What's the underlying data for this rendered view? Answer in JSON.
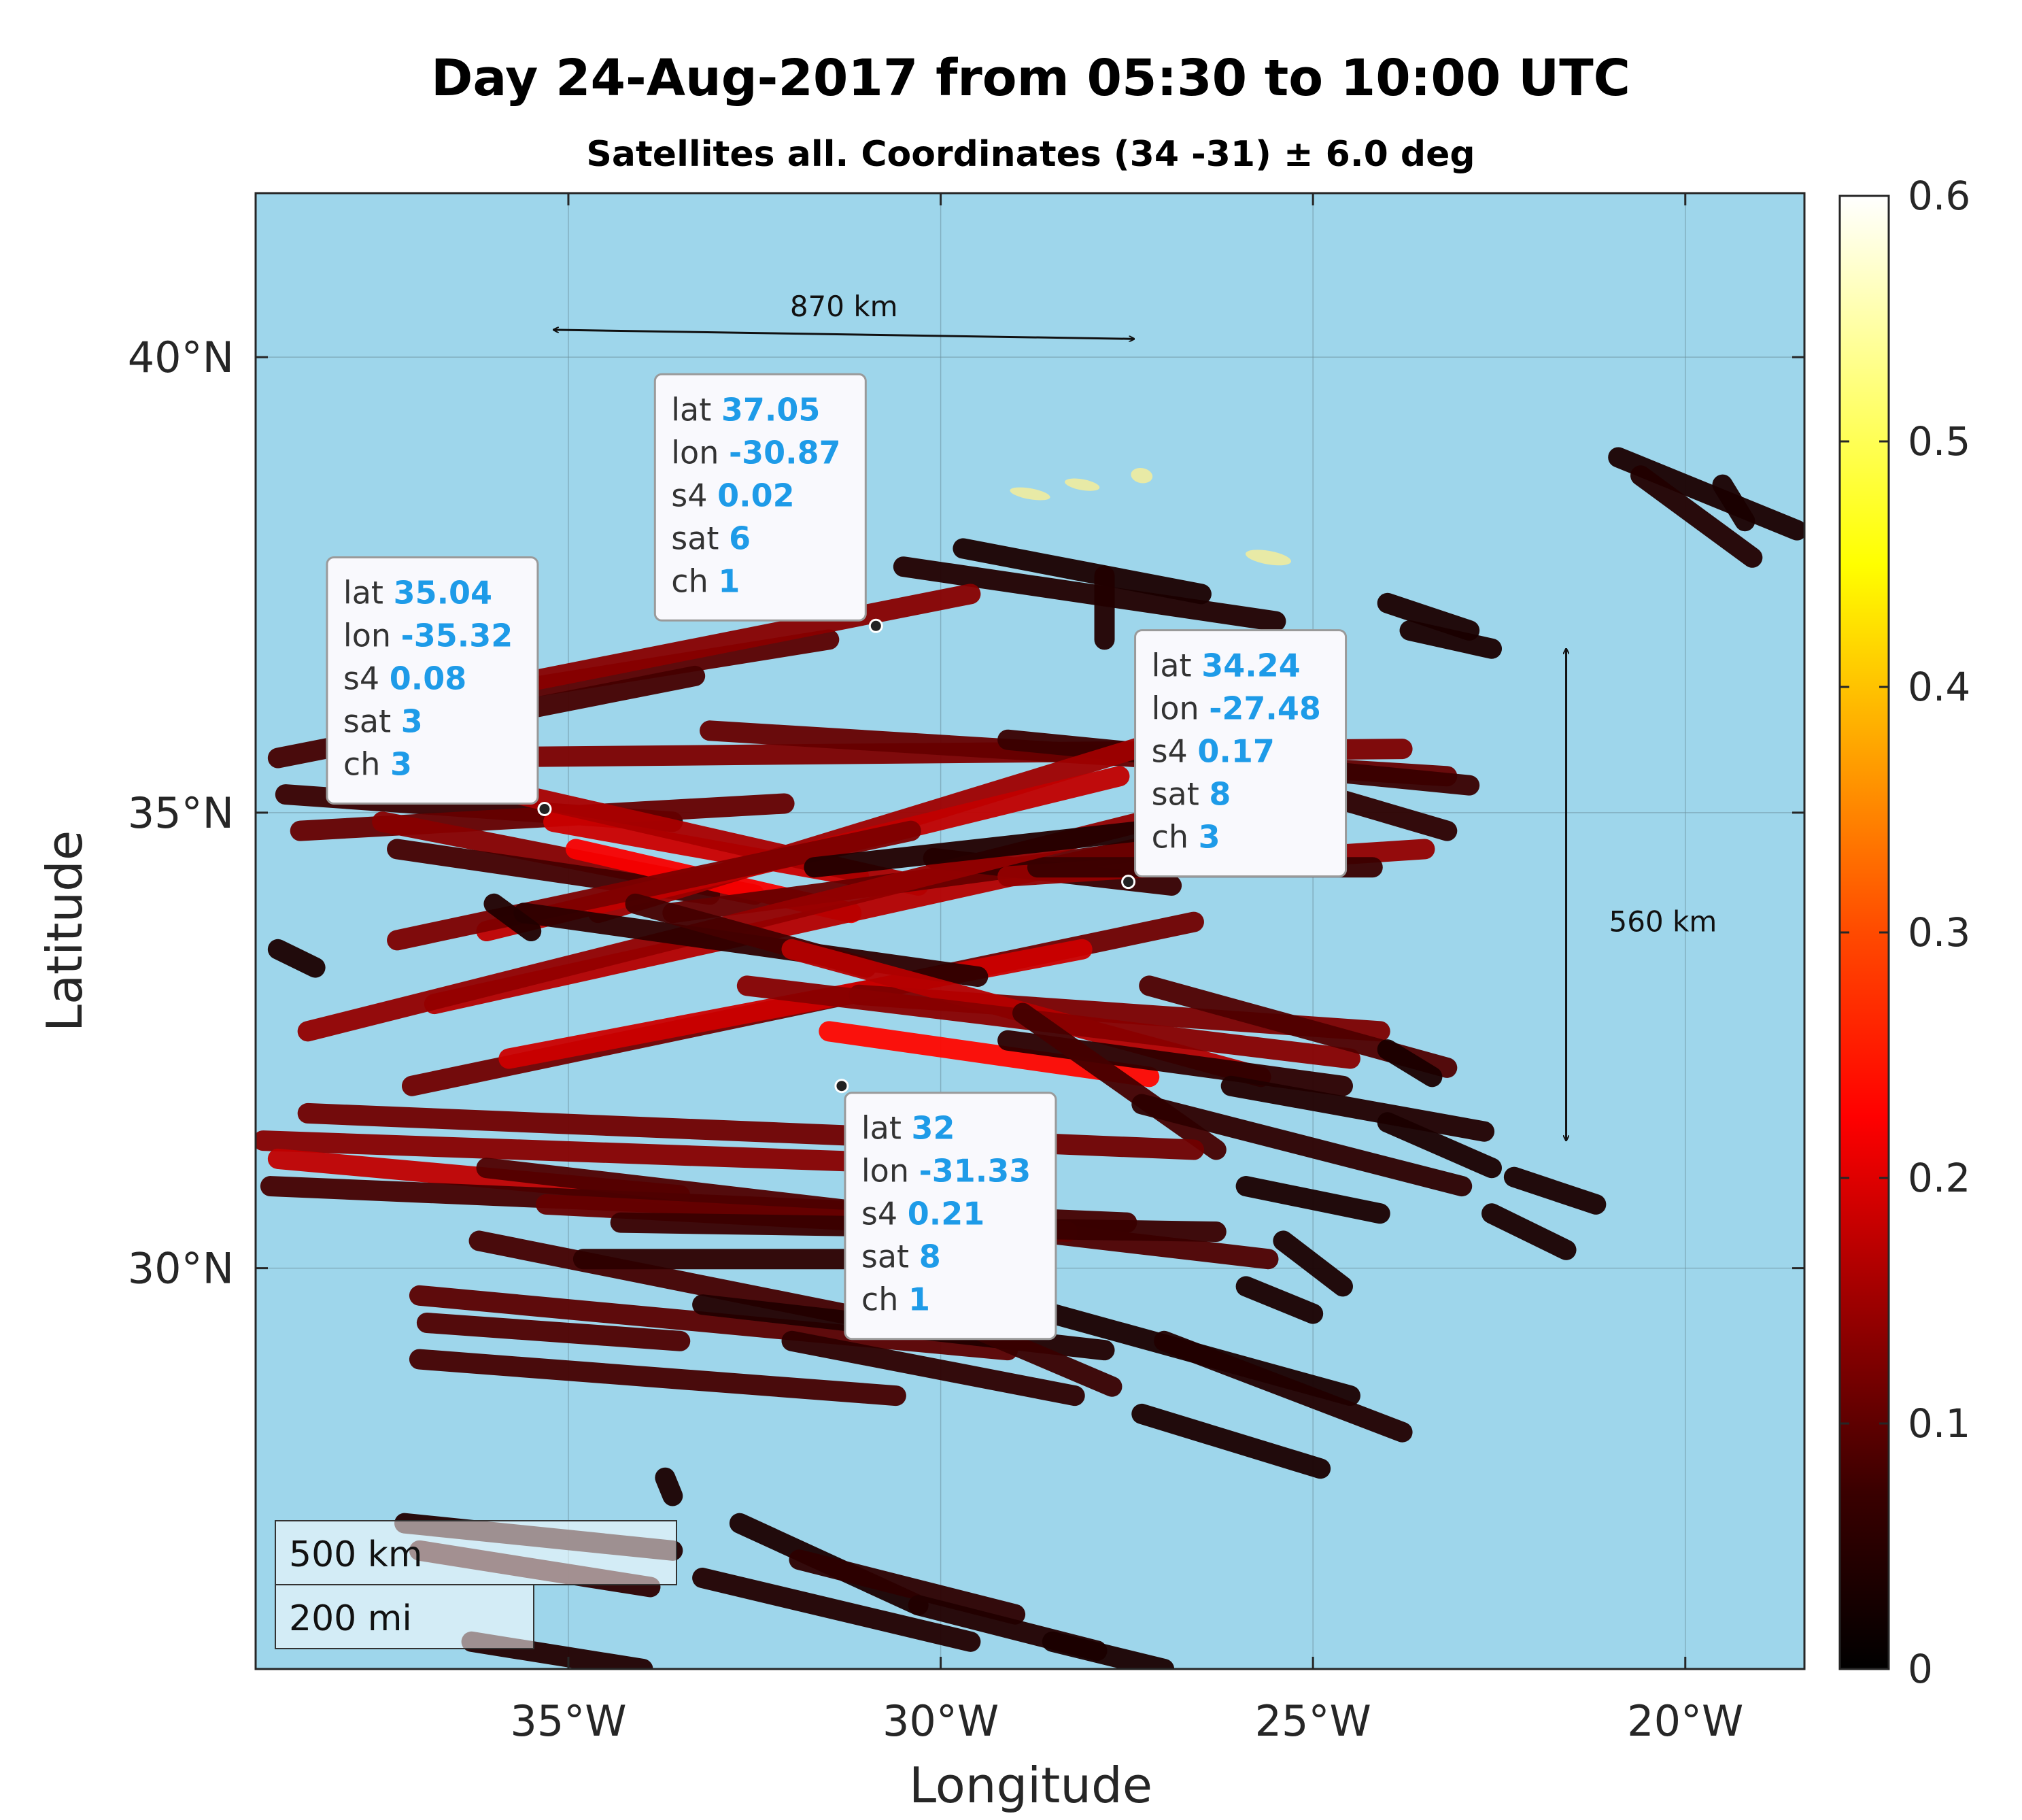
{
  "chart_data": {
    "type": "scatter",
    "title": "Day 24-Aug-2017 from 05:30 to 10:00 UTC",
    "subtitle": "Satellites all. Coordinates (34 -31) ± 6.0 deg",
    "xlabel": "Longitude",
    "ylabel": "Latitude",
    "xlim": [
      -39.2,
      -18.4
    ],
    "ylim": [
      25.6,
      41.8
    ],
    "x_ticks": [
      {
        "value": -35,
        "label": "35°W"
      },
      {
        "value": -30,
        "label": "30°W"
      },
      {
        "value": -25,
        "label": "25°W"
      },
      {
        "value": -20,
        "label": "20°W"
      }
    ],
    "y_ticks": [
      {
        "value": 30,
        "label": "30°N"
      },
      {
        "value": 35,
        "label": "35°N"
      },
      {
        "value": 40,
        "label": "40°N"
      }
    ],
    "grid": true,
    "colorbar": {
      "min": 0,
      "max": 0.6,
      "ticks": [
        {
          "value": 0,
          "label": "0"
        },
        {
          "value": 0.1,
          "label": "0.1"
        },
        {
          "value": 0.2,
          "label": "0.2"
        },
        {
          "value": 0.3,
          "label": "0.3"
        },
        {
          "value": 0.4,
          "label": "0.4"
        },
        {
          "value": 0.5,
          "label": "0.5"
        },
        {
          "value": 0.6,
          "label": "0.6"
        }
      ],
      "colormap": "hot"
    },
    "distance_annotations": [
      {
        "label": "870 km",
        "from": [
          -35.2,
          40.3
        ],
        "to": [
          -27.4,
          40.2
        ]
      },
      {
        "label": "560 km",
        "from": [
          -21.6,
          36.8
        ],
        "to": [
          -21.6,
          31.4
        ],
        "label_at": [
          -20.3,
          33.8
        ]
      }
    ],
    "scale_bar": {
      "km_label": "500 km",
      "mi_label": "200 mi"
    },
    "tracks": [
      {
        "from": [
          -30.5,
          37.7
        ],
        "to": [
          -25.5,
          37.1
        ],
        "s4": 0.03
      },
      {
        "from": [
          -29.7,
          37.9
        ],
        "to": [
          -26.5,
          37.4
        ],
        "s4": 0.02
      },
      {
        "from": [
          -24.0,
          37.3
        ],
        "to": [
          -22.9,
          37.0
        ],
        "s4": 0.02
      },
      {
        "from": [
          -23.7,
          37.0
        ],
        "to": [
          -22.6,
          36.8
        ],
        "s4": 0.02
      },
      {
        "from": [
          -20.9,
          38.9
        ],
        "to": [
          -18.5,
          38.1
        ],
        "s4": 0.02
      },
      {
        "from": [
          -20.6,
          38.7
        ],
        "to": [
          -19.1,
          37.8
        ],
        "s4": 0.03
      },
      {
        "from": [
          -19.5,
          38.6
        ],
        "to": [
          -19.2,
          38.2
        ],
        "s4": 0.02
      },
      {
        "from": [
          -37.6,
          36.1
        ],
        "to": [
          -31.5,
          36.9
        ],
        "s4": 0.08
      },
      {
        "from": [
          -36.4,
          36.3
        ],
        "to": [
          -29.6,
          37.4
        ],
        "s4": 0.12
      },
      {
        "from": [
          -38.9,
          35.6
        ],
        "to": [
          -33.3,
          36.5
        ],
        "s4": 0.06
      },
      {
        "from": [
          -37.3,
          35.6
        ],
        "to": [
          -23.8,
          35.7
        ],
        "s4": 0.11
      },
      {
        "from": [
          -33.1,
          35.9
        ],
        "to": [
          -23.2,
          35.4
        ],
        "s4": 0.09
      },
      {
        "from": [
          -29.1,
          35.8
        ],
        "to": [
          -22.9,
          35.3
        ],
        "s4": 0.05
      },
      {
        "from": [
          -25.7,
          35.4
        ],
        "to": [
          -23.2,
          34.8
        ],
        "s4": 0.04
      },
      {
        "from": [
          -38.8,
          35.2
        ],
        "to": [
          -33.6,
          34.9
        ],
        "s4": 0.05
      },
      {
        "from": [
          -38.6,
          34.8
        ],
        "to": [
          -32.1,
          35.1
        ],
        "s4": 0.09
      },
      {
        "from": [
          -37.5,
          34.9
        ],
        "to": [
          -32.5,
          34.1
        ],
        "s4": 0.12
      },
      {
        "from": [
          -37.3,
          34.6
        ],
        "to": [
          -33.1,
          34.1
        ],
        "s4": 0.06
      },
      {
        "from": [
          -35.2,
          34.9
        ],
        "to": [
          -31.1,
          34.3
        ],
        "s4": 0.18
      },
      {
        "from": [
          -34.9,
          34.6
        ],
        "to": [
          -31.2,
          33.9
        ],
        "s4": 0.22
      },
      {
        "from": [
          -36.2,
          35.3
        ],
        "to": [
          -30.3,
          34.2
        ],
        "s4": 0.15
      },
      {
        "from": [
          -34.6,
          33.9
        ],
        "to": [
          -25.4,
          36.2
        ],
        "s4": 0.14
      },
      {
        "from": [
          -36.1,
          33.7
        ],
        "to": [
          -27.6,
          35.4
        ],
        "s4": 0.17
      },
      {
        "from": [
          -37.3,
          33.6
        ],
        "to": [
          -30.4,
          34.8
        ],
        "s4": 0.11
      },
      {
        "from": [
          -36.8,
          32.9
        ],
        "to": [
          -26.3,
          34.8
        ],
        "s4": 0.16
      },
      {
        "from": [
          -33.6,
          33.9
        ],
        "to": [
          -25.3,
          34.8
        ],
        "s4": 0.09
      },
      {
        "from": [
          -30.1,
          34.5
        ],
        "to": [
          -26.9,
          34.2
        ],
        "s4": 0.05
      },
      {
        "from": [
          -29.1,
          34.3
        ],
        "to": [
          -23.5,
          34.6
        ],
        "s4": 0.13
      },
      {
        "from": [
          -28.7,
          34.4
        ],
        "to": [
          -24.2,
          34.4
        ],
        "s4": 0.05
      },
      {
        "from": [
          -38.5,
          32.6
        ],
        "to": [
          -27.3,
          34.9
        ],
        "s4": 0.13
      },
      {
        "from": [
          -37.1,
          32.0
        ],
        "to": [
          -26.6,
          33.8
        ],
        "s4": 0.1
      },
      {
        "from": [
          -35.8,
          32.3
        ],
        "to": [
          -28.1,
          33.5
        ],
        "s4": 0.18
      },
      {
        "from": [
          -35.6,
          33.9
        ],
        "to": [
          -29.5,
          33.2
        ],
        "s4": 0.04
      },
      {
        "from": [
          -34.1,
          34.0
        ],
        "to": [
          -31.0,
          33.3
        ],
        "s4": 0.06
      },
      {
        "from": [
          -31.7,
          34.4
        ],
        "to": [
          -26.2,
          34.9
        ],
        "s4": 0.03
      },
      {
        "from": [
          -38.9,
          33.5
        ],
        "to": [
          -38.4,
          33.3
        ],
        "s4": 0.02
      },
      {
        "from": [
          -36.0,
          34.0
        ],
        "to": [
          -35.5,
          33.7
        ],
        "s4": 0.03
      },
      {
        "from": [
          -31.1,
          33.0
        ],
        "to": [
          -24.1,
          32.6
        ],
        "s4": 0.11
      },
      {
        "from": [
          -32.0,
          33.5
        ],
        "to": [
          -25.7,
          32.1
        ],
        "s4": 0.16
      },
      {
        "from": [
          -32.6,
          33.1
        ],
        "to": [
          -24.5,
          32.3
        ],
        "s4": 0.12
      },
      {
        "from": [
          -31.5,
          32.6
        ],
        "to": [
          -27.2,
          32.1
        ],
        "s4": 0.23
      },
      {
        "from": [
          -27.2,
          33.1
        ],
        "to": [
          -23.2,
          32.2
        ],
        "s4": 0.07
      },
      {
        "from": [
          -29.1,
          32.5
        ],
        "to": [
          -24.6,
          32.0
        ],
        "s4": 0.04
      },
      {
        "from": [
          -28.9,
          32.8
        ],
        "to": [
          -26.3,
          31.3
        ],
        "s4": 0.06
      },
      {
        "from": [
          -26.1,
          32.0
        ],
        "to": [
          -22.7,
          31.5
        ],
        "s4": 0.03
      },
      {
        "from": [
          -27.3,
          31.8
        ],
        "to": [
          -23.0,
          30.9
        ],
        "s4": 0.04
      },
      {
        "from": [
          -24.0,
          32.4
        ],
        "to": [
          -23.4,
          32.1
        ],
        "s4": 0.02
      },
      {
        "from": [
          -38.5,
          31.7
        ],
        "to": [
          -26.6,
          31.3
        ],
        "s4": 0.1
      },
      {
        "from": [
          -39.1,
          31.4
        ],
        "to": [
          -28.7,
          31.1
        ],
        "s4": 0.12
      },
      {
        "from": [
          -38.9,
          31.2
        ],
        "to": [
          -33.5,
          30.8
        ],
        "s4": 0.17
      },
      {
        "from": [
          -39.0,
          30.9
        ],
        "to": [
          -27.5,
          30.5
        ],
        "s4": 0.06
      },
      {
        "from": [
          -36.1,
          31.1
        ],
        "to": [
          -25.6,
          30.1
        ],
        "s4": 0.07
      },
      {
        "from": [
          -35.3,
          30.7
        ],
        "to": [
          -28.3,
          30.4
        ],
        "s4": 0.09
      },
      {
        "from": [
          -34.3,
          30.5
        ],
        "to": [
          -26.3,
          30.4
        ],
        "s4": 0.05
      },
      {
        "from": [
          -36.2,
          30.3
        ],
        "to": [
          -31.3,
          29.5
        ],
        "s4": 0.06
      },
      {
        "from": [
          -34.8,
          30.1
        ],
        "to": [
          -29.6,
          30.1
        ],
        "s4": 0.04
      },
      {
        "from": [
          -37.0,
          29.7
        ],
        "to": [
          -29.1,
          29.1
        ],
        "s4": 0.08
      },
      {
        "from": [
          -36.9,
          29.4
        ],
        "to": [
          -33.5,
          29.2
        ],
        "s4": 0.07
      },
      {
        "from": [
          -37.0,
          29.0
        ],
        "to": [
          -30.6,
          28.6
        ],
        "s4": 0.06
      },
      {
        "from": [
          -33.2,
          29.6
        ],
        "to": [
          -27.8,
          29.1
        ],
        "s4": 0.03
      },
      {
        "from": [
          -32.0,
          29.2
        ],
        "to": [
          -28.2,
          28.6
        ],
        "s4": 0.04
      },
      {
        "from": [
          -30.0,
          29.5
        ],
        "to": [
          -27.7,
          28.7
        ],
        "s4": 0.05
      },
      {
        "from": [
          -28.5,
          29.5
        ],
        "to": [
          -24.5,
          28.6
        ],
        "s4": 0.02
      },
      {
        "from": [
          -27.0,
          29.2
        ],
        "to": [
          -23.8,
          28.2
        ],
        "s4": 0.03
      },
      {
        "from": [
          -27.3,
          28.4
        ],
        "to": [
          -24.9,
          27.8
        ],
        "s4": 0.02
      },
      {
        "from": [
          -25.4,
          30.3
        ],
        "to": [
          -24.6,
          29.8
        ],
        "s4": 0.02
      },
      {
        "from": [
          -25.9,
          29.8
        ],
        "to": [
          -25.0,
          29.5
        ],
        "s4": 0.02
      },
      {
        "from": [
          -22.3,
          31.0
        ],
        "to": [
          -21.2,
          30.7
        ],
        "s4": 0.02
      },
      {
        "from": [
          -22.6,
          30.6
        ],
        "to": [
          -21.6,
          30.2
        ],
        "s4": 0.02
      },
      {
        "from": [
          -25.9,
          30.9
        ],
        "to": [
          -24.1,
          30.6
        ],
        "s4": 0.02
      },
      {
        "from": [
          -24.0,
          31.6
        ],
        "to": [
          -22.6,
          31.1
        ],
        "s4": 0.02
      },
      {
        "from": [
          -37.2,
          27.2
        ],
        "to": [
          -33.6,
          26.9
        ],
        "s4": 0.03
      },
      {
        "from": [
          -37.0,
          26.9
        ],
        "to": [
          -33.9,
          26.5
        ],
        "s4": 0.04
      },
      {
        "from": [
          -33.2,
          26.6
        ],
        "to": [
          -29.6,
          25.9
        ],
        "s4": 0.03
      },
      {
        "from": [
          -32.7,
          27.2
        ],
        "to": [
          -30.3,
          26.3
        ],
        "s4": 0.02
      },
      {
        "from": [
          -31.9,
          26.8
        ],
        "to": [
          -29.0,
          26.2
        ],
        "s4": 0.04
      },
      {
        "from": [
          -30.3,
          26.3
        ],
        "to": [
          -27.9,
          25.8
        ],
        "s4": 0.03
      },
      {
        "from": [
          -28.5,
          25.9
        ],
        "to": [
          -27.0,
          25.6
        ],
        "s4": 0.02
      },
      {
        "from": [
          -36.3,
          25.9
        ],
        "to": [
          -34.0,
          25.6
        ],
        "s4": 0.03
      },
      {
        "from": [
          -33.7,
          27.7
        ],
        "to": [
          -33.6,
          27.5
        ],
        "s4": 0.02
      },
      {
        "from": [
          -27.8,
          37.6
        ],
        "to": [
          -27.8,
          36.9
        ],
        "s4": 0.03
      }
    ],
    "patches": [
      {
        "center": [
          -28.8,
          38.5
        ],
        "rx": 30,
        "ry": 8,
        "s4": 0.52
      },
      {
        "center": [
          -28.1,
          38.6
        ],
        "rx": 26,
        "ry": 8,
        "s4": 0.52
      },
      {
        "center": [
          -27.3,
          38.7
        ],
        "rx": 16,
        "ry": 11,
        "s4": 0.52
      },
      {
        "center": [
          -25.6,
          37.8
        ],
        "rx": 34,
        "ry": 10,
        "s4": 0.52
      }
    ],
    "datatips": [
      {
        "lat": "37.05",
        "lon": "-30.87",
        "s4": "0.02",
        "sat": "6",
        "ch": "1",
        "point": [
          -30.87,
          37.05
        ],
        "anchor": "top-left-above"
      },
      {
        "lat": "35.04",
        "lon": "-35.32",
        "s4": "0.08",
        "sat": "3",
        "ch": "3",
        "point": [
          -35.32,
          35.04
        ],
        "anchor": "above-left"
      },
      {
        "lat": "34.24",
        "lon": "-27.48",
        "s4": "0.17",
        "sat": "8",
        "ch": "3",
        "point": [
          -27.48,
          34.24
        ],
        "anchor": "above-right"
      },
      {
        "lat": "32",
        "lon": "-31.33",
        "s4": "0.21",
        "sat": "8",
        "ch": "1",
        "point": [
          -31.33,
          32.0
        ],
        "anchor": "below-right"
      }
    ],
    "datatip_keys": {
      "lat": "lat",
      "lon": "lon",
      "s4": "s4",
      "sat": "sat",
      "ch": "ch"
    }
  },
  "colors": {
    "ocean": "#9ed6eb",
    "grid": "#6b8f9c",
    "tip_value": "#1e9be8"
  }
}
